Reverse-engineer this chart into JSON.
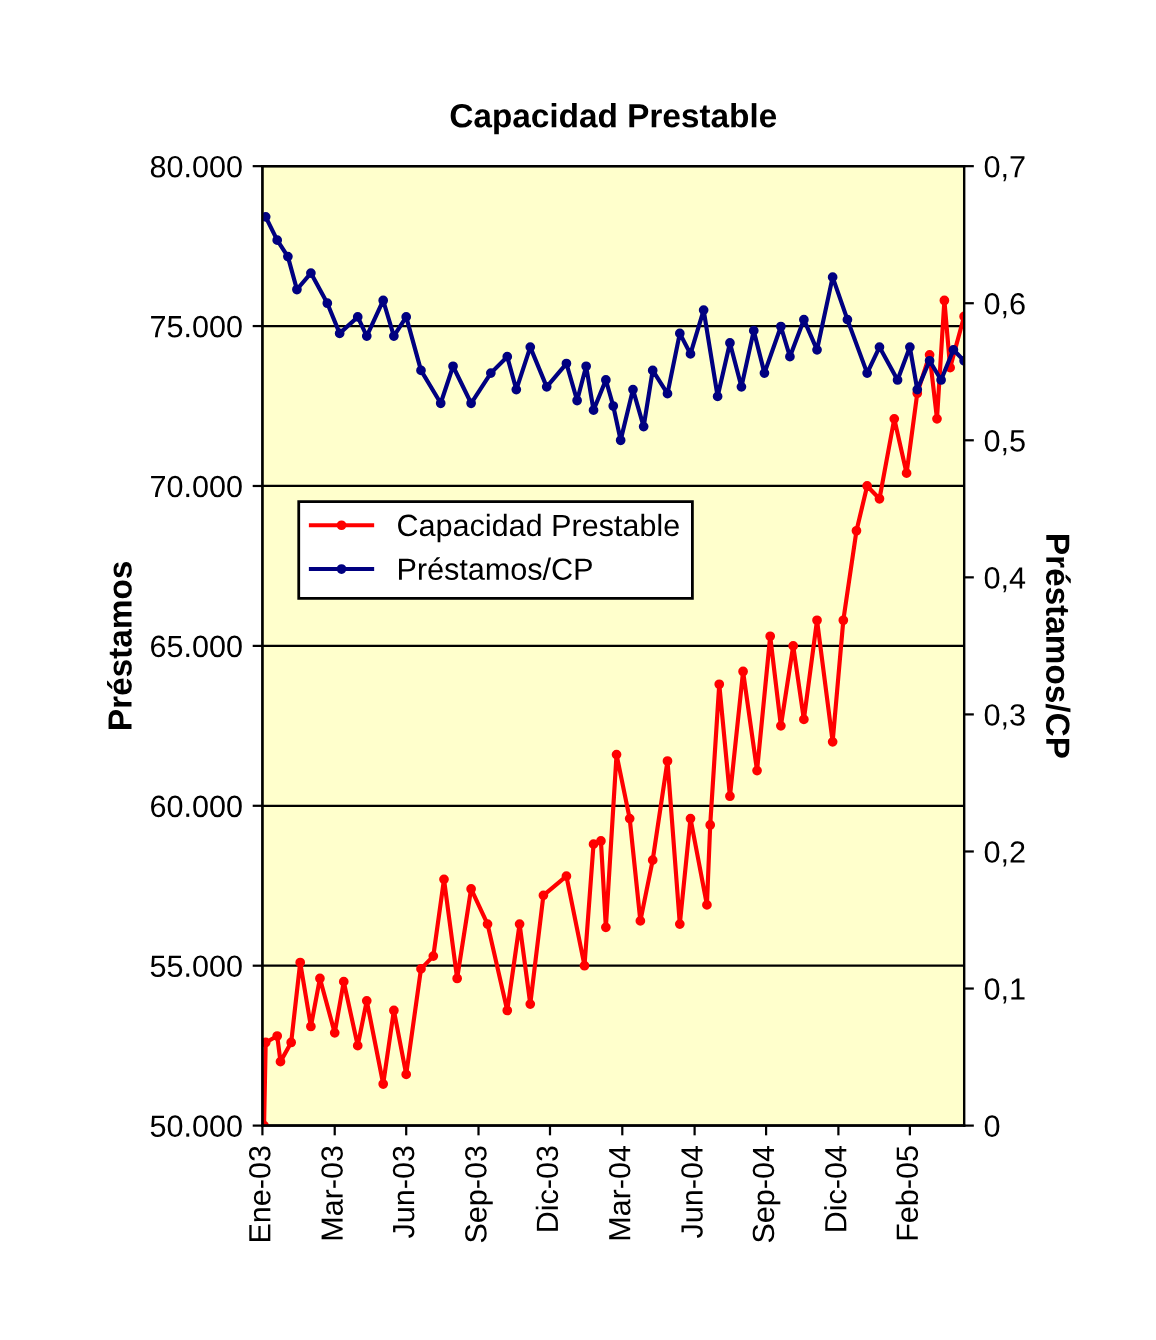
{
  "chart_data": {
    "type": "line",
    "title": "Capacidad Prestable",
    "ylabel": "Préstamos",
    "y2label": "Préstamos/CP",
    "series": [
      {
        "name": "Capacidad Prestable",
        "color": "#ff0000",
        "x": [
          "2003-01-03",
          "2003-01-05",
          "2003-01-19",
          "2003-01-23",
          "2003-02-05",
          "2003-02-16",
          "2003-03-01",
          "2003-03-12",
          "2003-03-30",
          "2003-04-10",
          "2003-04-27",
          "2003-05-08",
          "2003-05-28",
          "2003-06-10",
          "2003-06-25",
          "2003-07-13",
          "2003-07-28",
          "2003-08-10",
          "2003-08-26",
          "2003-09-12",
          "2003-10-02",
          "2003-10-26",
          "2003-11-10",
          "2003-11-23",
          "2003-12-09",
          "2004-01-06",
          "2004-01-28",
          "2004-02-08",
          "2004-02-17",
          "2004-02-23",
          "2004-03-07",
          "2004-03-23",
          "2004-04-05",
          "2004-04-20",
          "2004-05-08",
          "2004-05-23",
          "2004-06-05",
          "2004-06-25",
          "2004-06-29",
          "2004-07-10",
          "2004-07-23",
          "2004-08-08",
          "2004-08-25",
          "2004-09-10",
          "2004-09-23",
          "2004-10-08",
          "2004-10-21",
          "2004-11-06",
          "2004-11-25",
          "2004-12-08",
          "2004-12-24",
          "2005-01-06",
          "2005-01-21",
          "2005-02-08",
          "2005-02-23",
          "2005-03-08",
          "2005-03-23",
          "2005-04-01",
          "2005-04-10",
          "2005-04-17",
          "2005-05-04"
        ],
        "values": [
          50000,
          52600,
          52800,
          52000,
          52600,
          55100,
          53100,
          54600,
          52900,
          54500,
          52500,
          53900,
          51300,
          53600,
          51600,
          54900,
          55300,
          57700,
          54600,
          57400,
          56300,
          53600,
          56300,
          53800,
          57200,
          57800,
          55000,
          58800,
          58900,
          56200,
          61600,
          59600,
          56400,
          58300,
          61400,
          56300,
          59600,
          56900,
          59400,
          63800,
          60300,
          64200,
          61100,
          65300,
          62500,
          65000,
          62700,
          65800,
          62000,
          65800,
          68600,
          70000,
          69600,
          72100,
          70400,
          72900,
          74100,
          72100,
          75800,
          73700,
          75300
        ]
      },
      {
        "name": "Préstamos/CP",
        "color": "#000080",
        "axis": "y2",
        "x": [
          "2003-01-05",
          "2003-01-19",
          "2003-02-01",
          "2003-02-12",
          "2003-03-01",
          "2003-03-21",
          "2003-04-05",
          "2003-04-27",
          "2003-05-08",
          "2003-05-28",
          "2003-06-10",
          "2003-06-25",
          "2003-07-13",
          "2003-08-06",
          "2003-08-21",
          "2003-09-12",
          "2003-10-06",
          "2003-10-26",
          "2003-11-06",
          "2003-11-23",
          "2003-12-13",
          "2004-01-06",
          "2004-01-19",
          "2004-01-30",
          "2004-02-08",
          "2004-02-23",
          "2004-03-03",
          "2004-03-12",
          "2004-03-27",
          "2004-04-09",
          "2004-04-20",
          "2004-05-08",
          "2004-05-23",
          "2004-06-05",
          "2004-06-21",
          "2004-07-08",
          "2004-07-23",
          "2004-08-06",
          "2004-08-21",
          "2004-09-03",
          "2004-09-23",
          "2004-10-04",
          "2004-10-21",
          "2004-11-06",
          "2004-11-25",
          "2004-12-13",
          "2005-01-06",
          "2005-01-21",
          "2005-02-12",
          "2005-02-27",
          "2005-03-08",
          "2005-03-23",
          "2005-04-06",
          "2005-04-21",
          "2005-05-04"
        ],
        "values": [
          0.663,
          0.646,
          0.634,
          0.61,
          0.622,
          0.6,
          0.578,
          0.59,
          0.576,
          0.602,
          0.576,
          0.59,
          0.551,
          0.527,
          0.554,
          0.527,
          0.549,
          0.561,
          0.537,
          0.568,
          0.539,
          0.556,
          0.529,
          0.554,
          0.522,
          0.544,
          0.525,
          0.5,
          0.537,
          0.51,
          0.551,
          0.534,
          0.578,
          0.563,
          0.595,
          0.532,
          0.571,
          0.539,
          0.58,
          0.549,
          0.583,
          0.561,
          0.588,
          0.566,
          0.619,
          0.588,
          0.549,
          0.568,
          0.544,
          0.568,
          0.537,
          0.558,
          0.544,
          0.566,
          0.558
        ]
      }
    ],
    "xlim": [
      "2003-01-01",
      "2005-05-04"
    ],
    "xticks": [
      {
        "value": "2003-01-01",
        "label": "Ene-03"
      },
      {
        "value": "2003-03-30",
        "label": "Mar-03"
      },
      {
        "value": "2003-06-25",
        "label": "Jun-03"
      },
      {
        "value": "2003-09-21",
        "label": "Sep-03"
      },
      {
        "value": "2003-12-17",
        "label": "Dic-03"
      },
      {
        "value": "2004-03-14",
        "label": "Mar-04"
      },
      {
        "value": "2004-06-10",
        "label": "Jun-04"
      },
      {
        "value": "2004-09-05",
        "label": "Sep-04"
      },
      {
        "value": "2004-12-02",
        "label": "Dic-04"
      },
      {
        "value": "2005-02-27",
        "label": "Feb-05"
      }
    ],
    "ylim": [
      50000,
      80000
    ],
    "yticks": [
      {
        "value": 50000,
        "label": "50.000"
      },
      {
        "value": 55000,
        "label": "55.000"
      },
      {
        "value": 60000,
        "label": "60.000"
      },
      {
        "value": 65000,
        "label": "65.000"
      },
      {
        "value": 70000,
        "label": "70.000"
      },
      {
        "value": 75000,
        "label": "75.000"
      },
      {
        "value": 80000,
        "label": "80.000"
      }
    ],
    "y2lim": [
      0,
      0.7
    ],
    "y2ticks": [
      0,
      {
        "value": 0.1,
        "label": "0,1"
      },
      {
        "value": 0.2,
        "label": "0,2"
      },
      {
        "value": 0.3,
        "label": "0,3"
      },
      {
        "value": 0.4,
        "label": "0,4"
      },
      {
        "value": 0.5,
        "label": "0,5"
      },
      {
        "value": 0.6,
        "label": "0,6"
      },
      {
        "value": 0.7,
        "label": "0,7"
      }
    ],
    "grid": "y",
    "legend": "left",
    "marker": "circle",
    "line_style": "solid"
  }
}
